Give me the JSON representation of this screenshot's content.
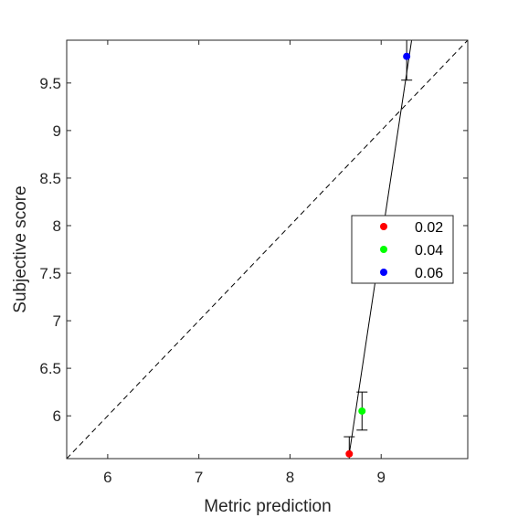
{
  "chart_data": {
    "type": "scatter",
    "xlabel": "Metric prediction",
    "ylabel": "Subjective score",
    "xlim": [
      5.55,
      9.95
    ],
    "ylim": [
      5.55,
      9.95
    ],
    "xticks": [
      6,
      7,
      8,
      9
    ],
    "xtick_labels": [
      "6",
      "7",
      "8",
      "9"
    ],
    "yticks": [
      6,
      6.5,
      7,
      7.5,
      8,
      8.5,
      9,
      9.5
    ],
    "ytick_labels": [
      "6",
      "6.5",
      "7",
      "7.5",
      "8",
      "8.5",
      "9",
      "9.5"
    ],
    "grid": false,
    "legend_position": "center-right",
    "identity_line": true,
    "series": [
      {
        "name": "0.02",
        "color": "#ff0000",
        "x": [
          8.65
        ],
        "y": [
          5.6
        ],
        "err": [
          0.18
        ]
      },
      {
        "name": "0.04",
        "color": "#00ff00",
        "x": [
          8.79
        ],
        "y": [
          6.05
        ],
        "err": [
          0.2
        ]
      },
      {
        "name": "0.06",
        "color": "#0000ff",
        "x": [
          9.28
        ],
        "y": [
          9.78
        ],
        "err": [
          0.25
        ]
      }
    ],
    "fit_line": {
      "x": [
        8.65,
        9.35
      ],
      "y": [
        5.6,
        10.05
      ]
    }
  }
}
